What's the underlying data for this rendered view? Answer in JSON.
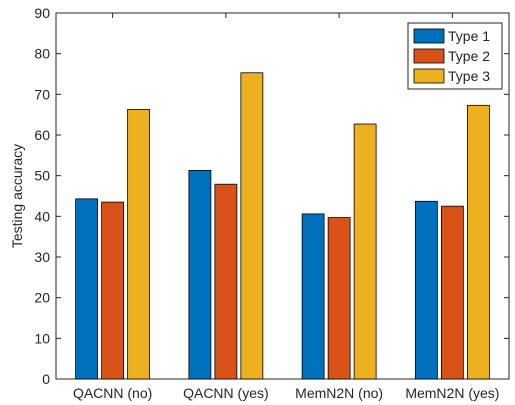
{
  "chart_data": {
    "type": "bar",
    "categories": [
      "QACNN (no)",
      "QACNN (yes)",
      "MemN2N (no)",
      "MemN2N (yes)"
    ],
    "series": [
      {
        "name": "Type 1",
        "values": [
          44.3,
          51.3,
          40.6,
          43.7
        ],
        "color": "#0072BD"
      },
      {
        "name": "Type 2",
        "values": [
          43.5,
          47.9,
          39.7,
          42.5
        ],
        "color": "#D95319"
      },
      {
        "name": "Type 3",
        "values": [
          66.3,
          75.3,
          62.7,
          67.3
        ],
        "color": "#EDB120"
      }
    ],
    "title": "",
    "xlabel": "",
    "ylabel": "Testing accuracy",
    "ylim": [
      0,
      90
    ],
    "yticks": [
      0,
      10,
      20,
      30,
      40,
      50,
      60,
      70,
      80,
      90
    ],
    "grid": false,
    "legend_position": "top-right"
  }
}
